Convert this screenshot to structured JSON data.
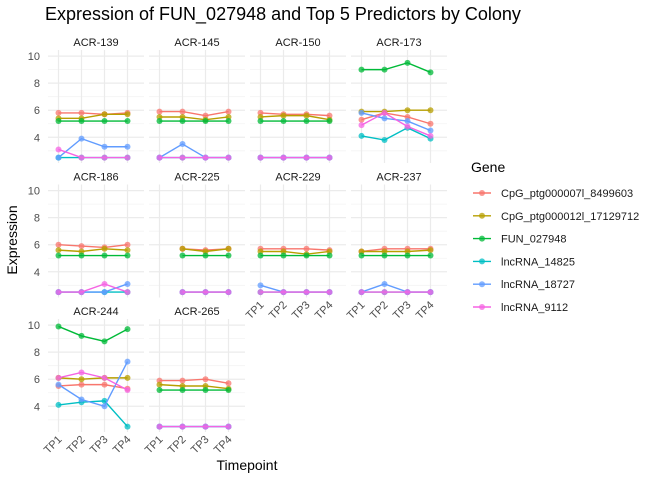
{
  "chart_data": {
    "type": "line",
    "title": "Expression of FUN_027948 and Top 5 Predictors by Colony",
    "xlabel": "Timepoint",
    "ylabel": "Expression",
    "legend_title": "Gene",
    "legend_position": "right",
    "grid": true,
    "categories": [
      "TP1",
      "TP2",
      "TP3",
      "TP4"
    ],
    "yticks": [
      4,
      6,
      8,
      10
    ],
    "ylim": [
      2.1,
      10.45
    ],
    "series_styles": [
      {
        "name": "CpG_ptg000007l_8499603",
        "color": "#F8766D"
      },
      {
        "name": "CpG_ptg000012l_17129712",
        "color": "#B79F00"
      },
      {
        "name": "FUN_027948",
        "color": "#00BA38"
      },
      {
        "name": "lncRNA_14825",
        "color": "#00BFC4"
      },
      {
        "name": "lncRNA_18727",
        "color": "#619CFF"
      },
      {
        "name": "lncRNA_9112",
        "color": "#F564E3"
      }
    ],
    "panels": [
      {
        "colony": "ACR-139",
        "values": [
          [
            5.8,
            5.8,
            5.7,
            5.8
          ],
          [
            5.4,
            5.4,
            5.7,
            5.7
          ],
          [
            5.2,
            5.2,
            5.2,
            5.2
          ],
          [
            2.5,
            2.5,
            2.5,
            2.5
          ],
          [
            2.5,
            3.9,
            3.3,
            3.3
          ],
          [
            3.1,
            2.5,
            2.5,
            2.5
          ]
        ]
      },
      {
        "colony": "ACR-145",
        "values": [
          [
            5.9,
            5.9,
            5.6,
            5.9
          ],
          [
            5.5,
            5.5,
            5.3,
            5.5
          ],
          [
            5.2,
            5.2,
            5.2,
            5.2
          ],
          [
            2.5,
            2.5,
            2.5,
            2.5
          ],
          [
            2.5,
            3.5,
            2.5,
            2.5
          ],
          [
            2.5,
            2.5,
            2.5,
            2.5
          ]
        ]
      },
      {
        "colony": "ACR-150",
        "values": [
          [
            5.8,
            5.7,
            5.7,
            5.6
          ],
          [
            5.5,
            5.6,
            5.6,
            5.3
          ],
          [
            5.2,
            5.2,
            5.2,
            5.2
          ],
          [
            2.5,
            2.5,
            2.5,
            2.5
          ],
          [
            2.5,
            2.5,
            2.5,
            2.5
          ],
          [
            2.5,
            2.5,
            2.5,
            2.5
          ]
        ]
      },
      {
        "colony": "ACR-173",
        "values": [
          [
            5.3,
            5.8,
            5.5,
            5.0
          ],
          [
            5.9,
            5.9,
            6.0,
            6.0
          ],
          [
            9.0,
            9.0,
            9.5,
            8.8
          ],
          [
            4.1,
            3.8,
            4.7,
            3.9
          ],
          [
            5.8,
            5.4,
            5.2,
            4.5
          ],
          [
            4.9,
            5.8,
            4.8,
            4.1
          ]
        ]
      },
      {
        "colony": "ACR-186",
        "values": [
          [
            6.0,
            5.9,
            5.8,
            6.0
          ],
          [
            5.6,
            5.5,
            5.7,
            5.6
          ],
          [
            5.2,
            5.2,
            5.2,
            5.2
          ],
          [
            2.5,
            2.5,
            2.5,
            2.5
          ],
          [
            2.5,
            2.5,
            2.5,
            3.1
          ],
          [
            2.5,
            2.5,
            3.1,
            2.5
          ]
        ]
      },
      {
        "colony": "ACR-225",
        "values": [
          [
            null,
            5.7,
            5.6,
            5.7
          ],
          [
            null,
            5.7,
            5.5,
            5.7
          ],
          [
            null,
            5.2,
            5.2,
            5.2
          ],
          [
            null,
            2.5,
            2.5,
            2.5
          ],
          [
            null,
            2.5,
            2.5,
            2.5
          ],
          [
            null,
            2.5,
            2.5,
            2.5
          ]
        ]
      },
      {
        "colony": "ACR-229",
        "values": [
          [
            5.7,
            5.7,
            5.7,
            5.6
          ],
          [
            5.5,
            5.5,
            5.3,
            5.5
          ],
          [
            5.2,
            5.2,
            5.2,
            5.2
          ],
          [
            2.5,
            2.5,
            2.5,
            2.5
          ],
          [
            3.0,
            2.5,
            2.5,
            2.5
          ],
          [
            2.5,
            2.5,
            2.5,
            2.5
          ]
        ]
      },
      {
        "colony": "ACR-237",
        "values": [
          [
            5.5,
            5.7,
            5.7,
            5.7
          ],
          [
            5.5,
            5.5,
            5.5,
            5.6
          ],
          [
            5.2,
            5.2,
            5.2,
            5.2
          ],
          [
            2.5,
            2.5,
            2.5,
            2.5
          ],
          [
            2.5,
            3.1,
            2.5,
            2.5
          ],
          [
            2.5,
            2.5,
            2.5,
            2.5
          ]
        ]
      },
      {
        "colony": "ACR-244",
        "values": [
          [
            5.5,
            5.6,
            5.6,
            5.3
          ],
          [
            6.1,
            6.0,
            6.1,
            6.1
          ],
          [
            9.9,
            9.2,
            8.8,
            9.7
          ],
          [
            4.1,
            4.3,
            4.4,
            2.5
          ],
          [
            5.6,
            4.5,
            4.0,
            7.3
          ],
          [
            6.1,
            6.5,
            6.1,
            5.2
          ]
        ]
      },
      {
        "colony": "ACR-265",
        "values": [
          [
            5.9,
            5.9,
            6.0,
            5.7
          ],
          [
            5.6,
            5.5,
            5.5,
            5.3
          ],
          [
            5.2,
            5.2,
            5.2,
            5.2
          ],
          [
            2.5,
            2.5,
            2.5,
            2.5
          ],
          [
            2.5,
            2.5,
            2.5,
            2.5
          ],
          [
            2.5,
            2.5,
            2.5,
            2.5
          ]
        ]
      }
    ]
  }
}
